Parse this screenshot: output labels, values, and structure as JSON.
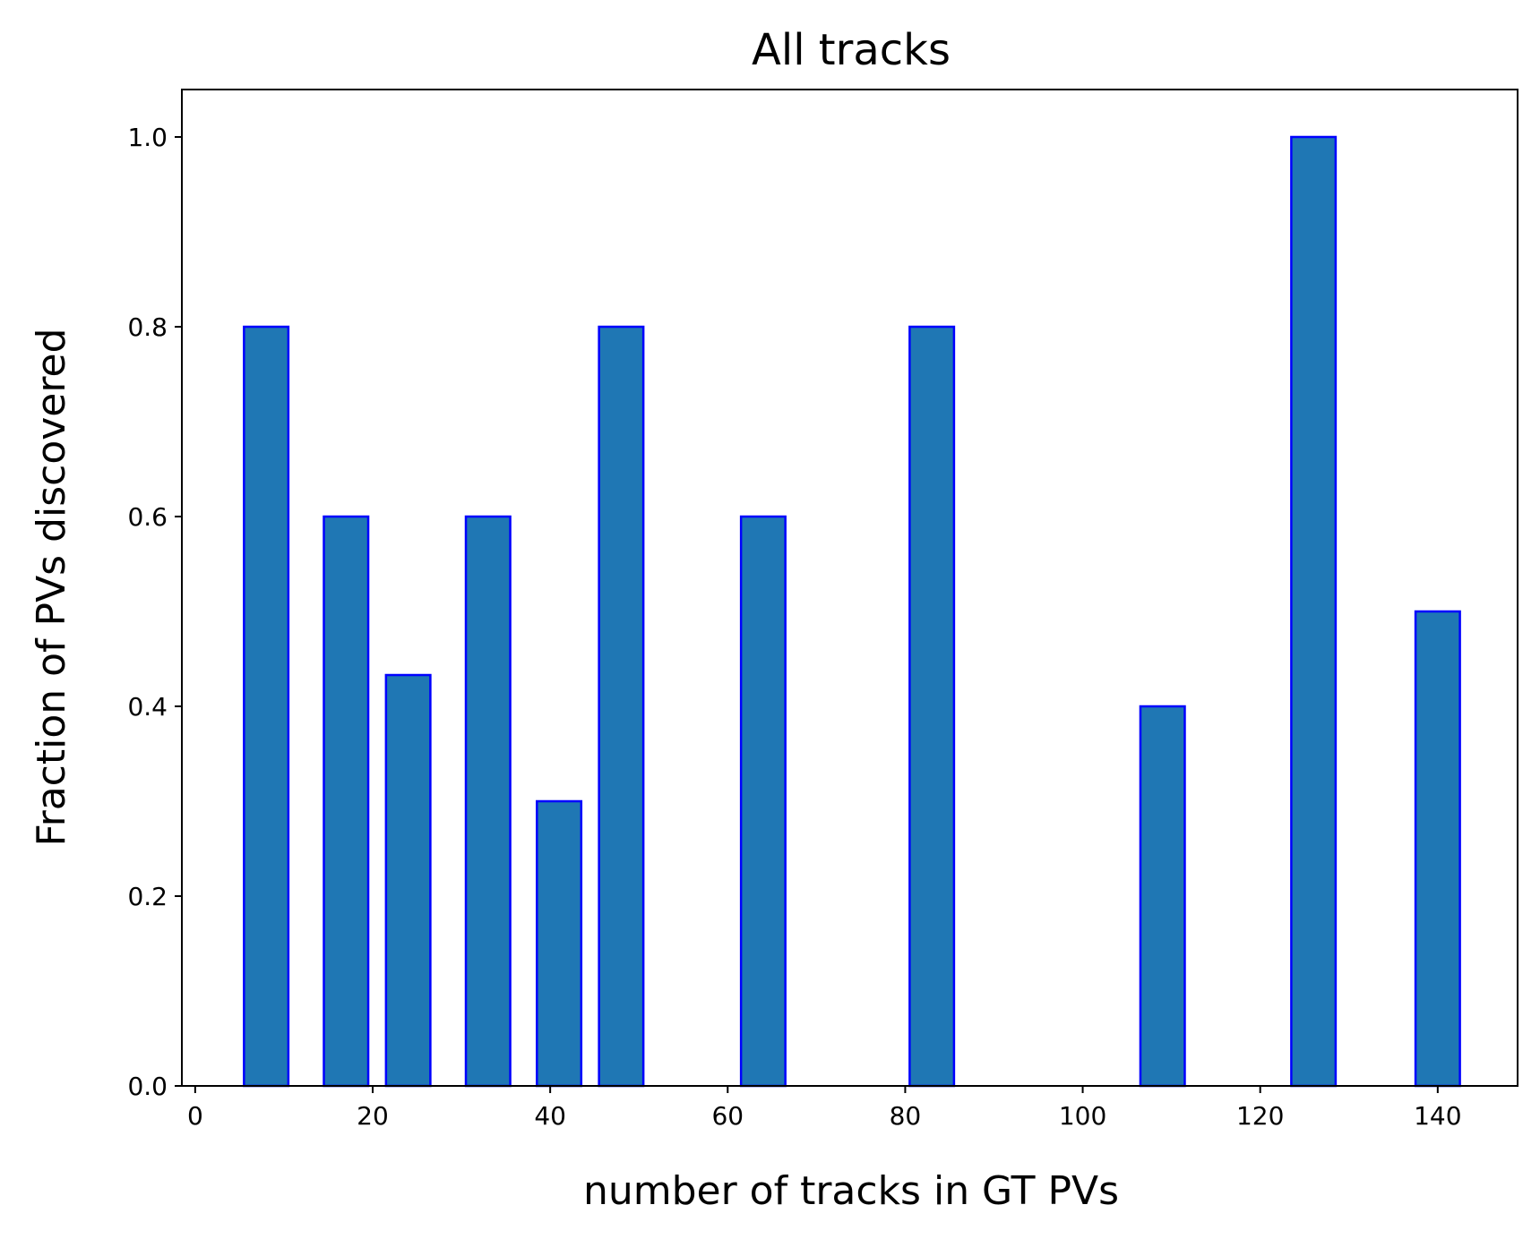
{
  "chart_data": {
    "type": "bar",
    "title": "All tracks",
    "xlabel": "number of tracks in GT PVs",
    "ylabel": "Fraction of PVs discovered",
    "xlim": [
      -1.5,
      149
    ],
    "ylim": [
      0,
      1.05
    ],
    "xticks": [
      0,
      20,
      40,
      60,
      80,
      100,
      120,
      140
    ],
    "xtick_labels": [
      "0",
      "20",
      "40",
      "60",
      "80",
      "100",
      "120",
      "140"
    ],
    "yticks": [
      0.0,
      0.2,
      0.4,
      0.6,
      0.8,
      1.0
    ],
    "ytick_labels": [
      "0.0",
      "0.2",
      "0.4",
      "0.6",
      "0.8",
      "1.0"
    ],
    "bar_width": 5,
    "x": [
      8,
      17,
      24,
      33,
      41,
      48,
      64,
      83,
      109,
      126,
      140
    ],
    "values": [
      0.8,
      0.6,
      0.433,
      0.6,
      0.3,
      0.8,
      0.6,
      0.8,
      0.4,
      1.0,
      0.5
    ],
    "bar_fill": "#1f77b4",
    "bar_edge": "#0000ff",
    "grid": false,
    "legend": "none"
  }
}
